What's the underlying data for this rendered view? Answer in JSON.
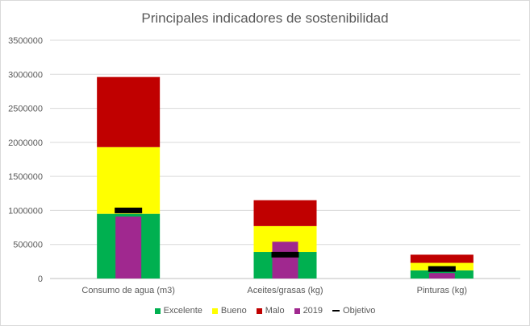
{
  "chart_data": {
    "type": "bar",
    "title": "Principales indicadores de sostenibilidad",
    "categories": [
      "Consumo de agua (m3)",
      "Aceites/grasas (kg)",
      "Pinturas (kg)"
    ],
    "stacked_series": [
      {
        "name": "Excelente",
        "color": "#00b050",
        "values": [
          950000,
          390000,
          120000
        ]
      },
      {
        "name": "Bueno",
        "color": "#ffff00",
        "values": [
          980000,
          380000,
          110000
        ]
      },
      {
        "name": "Malo",
        "color": "#c00000",
        "values": [
          1030000,
          380000,
          120000
        ]
      }
    ],
    "overlay_series": {
      "name": "2019",
      "color": "#a0288f",
      "values": [
        910000,
        540000,
        80000
      ]
    },
    "target_series": {
      "name": "Objetivo",
      "color": "#000000",
      "values": [
        1000000,
        350000,
        140000
      ]
    },
    "ylim": [
      0,
      3500000
    ],
    "yticks": [
      0,
      500000,
      1000000,
      1500000,
      2000000,
      2500000,
      3000000,
      3500000
    ],
    "ytick_labels": [
      "0",
      "500000",
      "1000000",
      "1500000",
      "2000000",
      "2500000",
      "3000000",
      "3500000"
    ],
    "xlabel": "",
    "ylabel": "",
    "grid": true,
    "legend_position": "bottom"
  }
}
